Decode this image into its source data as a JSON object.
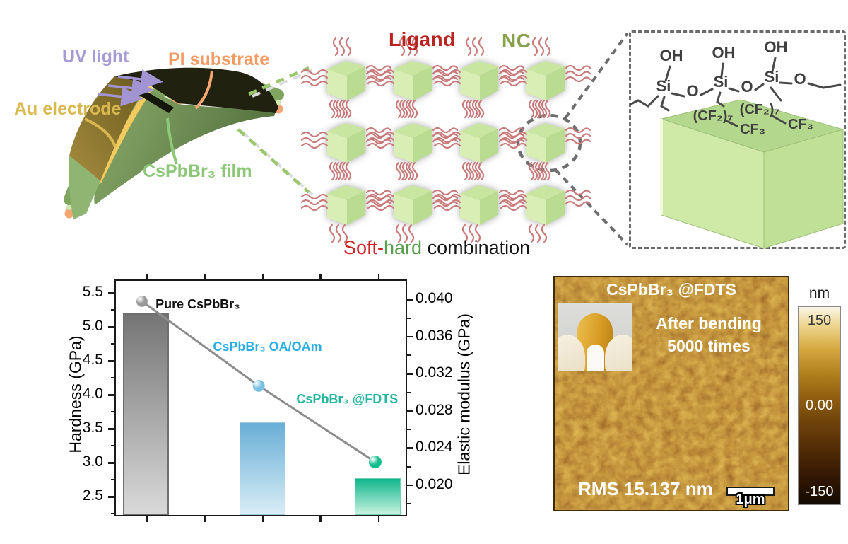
{
  "device": {
    "uv_light": "UV light",
    "pi_substrate": "PI substrate",
    "au_electrode": "Au electrode",
    "film": "CsPbBr₃ film",
    "colors": {
      "uv": "#a79bd6",
      "pi": "#f49a63",
      "au": "#d9b94f",
      "film": "#8cc878"
    }
  },
  "nc_panel": {
    "ligand_label": "Ligand",
    "nc_label": "NC",
    "caption": {
      "soft": "Soft-",
      "hard": "hard",
      "rest": " combination"
    },
    "colors": {
      "ligand": "#b92421",
      "nc": "#87a24b",
      "soft": "#cc2222",
      "hard": "#55a049",
      "rest": "#151515",
      "ligand_stroke": "#c97a7a"
    },
    "grid": {
      "rows": 3,
      "cols": 4
    }
  },
  "chem_panel": {
    "labels": {
      "oh1": "OH",
      "oh2": "OH",
      "oh3": "OH",
      "si1": "Si",
      "si2": "Si",
      "si3": "Si",
      "o1": "O",
      "o2": "O",
      "o3": "O",
      "cf2a": "(CF₂)₇",
      "cf2b": "(CF₂)₇",
      "cf3a": "CF₃",
      "cf3b": "CF₃"
    }
  },
  "chart_data": {
    "type": "bar",
    "title": "",
    "categories": [
      "Pure CsPbBr₃",
      "CsPbBr₃ OA/OAm",
      "CsPbBr₃ @FDTS"
    ],
    "series": [
      {
        "name": "Hardness",
        "plot": "bar",
        "axis": "left",
        "values": [
          5.2,
          3.6,
          2.77
        ],
        "bar_top_colors": [
          "#757575",
          "#68aed6",
          "#0fb68b"
        ],
        "bar_bottom_colors": [
          "#d9d9d9",
          "#d9edf6",
          "#c9f2e0"
        ],
        "bar_border_colors": [
          "#6f6f6f",
          "#9fc9de",
          "#6fd2b2"
        ],
        "bar_border_widths": [
          "2px",
          "1px",
          "1px"
        ]
      },
      {
        "name": "Elastic modulus",
        "plot": "line+scatter",
        "axis": "right",
        "values": [
          0.0398,
          0.0307,
          0.0225
        ],
        "line_color": "#8c8c8c",
        "marker_colors": [
          "#999999",
          "#79c1e3",
          "#13bf8e"
        ],
        "marker_radii": [
          8,
          8.5,
          9
        ]
      }
    ],
    "left_axis": {
      "title": "Hardness  (GPa)",
      "min": 2.23,
      "max": 5.68,
      "ticks": [
        "2.5",
        "3.0",
        "3.5",
        "4.0",
        "4.5",
        "5.0",
        "5.5"
      ],
      "minor_step": 0.25
    },
    "right_axis": {
      "title": "Elastic modulus (GPa)",
      "min": 0.0168,
      "max": 0.042,
      "ticks": [
        "0.020",
        "0.024",
        "0.028",
        "0.032",
        "0.036",
        "0.040"
      ],
      "minor_step": 0.002
    },
    "x_positions": [
      0.09,
      0.493,
      0.895
    ],
    "bar_center_positions": [
      0.104,
      0.507,
      0.904
    ],
    "bar_width_frac": 0.158,
    "x_tick_positions": [
      0.107,
      0.305,
      0.507,
      0.705,
      0.907
    ],
    "grid_on": false,
    "annotations": [
      {
        "text": "Pure CsPbBr₃",
        "color": "#111111",
        "x": 0.137,
        "y": 0.07
      },
      {
        "text": "CsPbBr₃ OA/OAm",
        "color": "#2aaee3",
        "x": 0.335,
        "y": 0.251
      },
      {
        "text": "CsPbBr₃ @FDTS",
        "color": "#27b69e",
        "x": 0.623,
        "y": 0.474
      }
    ]
  },
  "afm": {
    "title": "CsPbBr₃ @FDTS",
    "bend_line1": "After bending",
    "bend_line2": "5000 times",
    "rms": "RMS 15.137 nm",
    "scale_label": "1μm",
    "colorbar": {
      "unit": "nm",
      "max": "150",
      "mid": "0.00",
      "min": "-150"
    }
  }
}
